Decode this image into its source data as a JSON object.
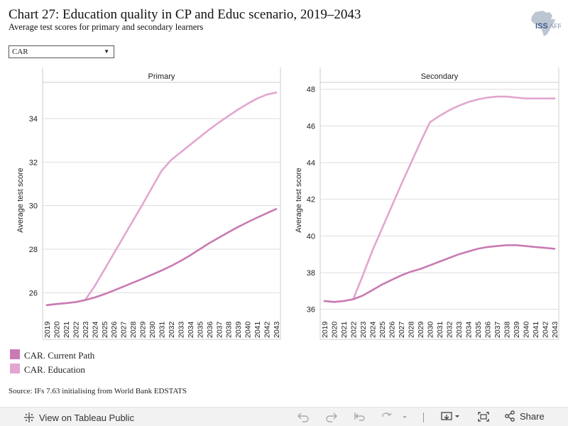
{
  "header": {
    "title": "Chart 27: Education quality in CP and Educ scenario, 2019–2043",
    "subtitle": "Average test scores for primary and secondary learners"
  },
  "logo": {
    "text_main": "ISS",
    "text_suffix": "AFRICA",
    "icon": "africa-map-logo"
  },
  "filter": {
    "selected": "CAR"
  },
  "chart_data": [
    {
      "type": "line",
      "title": "Primary",
      "ylabel": "Average test score",
      "ylim": [
        24.9,
        35.6
      ],
      "yticks": [
        26,
        28,
        30,
        32,
        34
      ],
      "x": [
        "2019",
        "2020",
        "2021",
        "2022",
        "2023",
        "2024",
        "2025",
        "2026",
        "2027",
        "2028",
        "2029",
        "2030",
        "2031",
        "2032",
        "2033",
        "2034",
        "2035",
        "2036",
        "2037",
        "2038",
        "2039",
        "2040",
        "2041",
        "2042",
        "2043"
      ],
      "series": [
        {
          "name": "CAR. Current Path",
          "color": "#c97ab3",
          "values": [
            25.43,
            25.48,
            25.52,
            25.57,
            25.66,
            25.78,
            25.93,
            26.1,
            26.28,
            26.46,
            26.64,
            26.83,
            27.02,
            27.23,
            27.46,
            27.72,
            28.0,
            28.28,
            28.53,
            28.78,
            29.02,
            29.24,
            29.45,
            29.65,
            29.85
          ]
        },
        {
          "name": "CAR. Education",
          "color": "#e2a6d0",
          "values": [
            25.43,
            25.48,
            25.52,
            25.57,
            25.66,
            26.3,
            27.05,
            27.8,
            28.55,
            29.3,
            30.05,
            30.82,
            31.6,
            32.1,
            32.45,
            32.8,
            33.15,
            33.5,
            33.82,
            34.12,
            34.42,
            34.68,
            34.92,
            35.1,
            35.2
          ]
        }
      ]
    },
    {
      "type": "line",
      "title": "Secondary",
      "ylabel": "Average test score",
      "ylim": [
        35.6,
        48.3
      ],
      "yticks": [
        36,
        38,
        40,
        42,
        44,
        46,
        48
      ],
      "x": [
        "2019",
        "2020",
        "2021",
        "2022",
        "2023",
        "2024",
        "2025",
        "2026",
        "2027",
        "2028",
        "2029",
        "2030",
        "2031",
        "2032",
        "2033",
        "2034",
        "2035",
        "2036",
        "2037",
        "2038",
        "2039",
        "2040",
        "2041",
        "2042",
        "2043"
      ],
      "series": [
        {
          "name": "CAR. Current Path",
          "color": "#c97ab3",
          "values": [
            36.45,
            36.4,
            36.45,
            36.55,
            36.75,
            37.05,
            37.35,
            37.6,
            37.85,
            38.05,
            38.2,
            38.4,
            38.6,
            38.8,
            39.0,
            39.15,
            39.3,
            39.4,
            39.45,
            39.5,
            39.5,
            39.45,
            39.4,
            39.35,
            39.3
          ]
        },
        {
          "name": "CAR. Education",
          "color": "#e2a6d0",
          "values": [
            36.45,
            36.4,
            36.45,
            36.55,
            37.85,
            39.2,
            40.4,
            41.6,
            42.8,
            43.95,
            45.1,
            46.2,
            46.55,
            46.85,
            47.1,
            47.3,
            47.45,
            47.55,
            47.6,
            47.6,
            47.55,
            47.5,
            47.5,
            47.5,
            47.5
          ]
        }
      ]
    }
  ],
  "legend": [
    {
      "label": "CAR. Current Path",
      "color": "#c97ab3"
    },
    {
      "label": "CAR. Education",
      "color": "#e2a6d0"
    }
  ],
  "source": "Source: IFs 7.63 initialising from World Bank EDSTATS",
  "toolbar": {
    "view_label": "View on Tableau Public",
    "share_label": "Share"
  }
}
